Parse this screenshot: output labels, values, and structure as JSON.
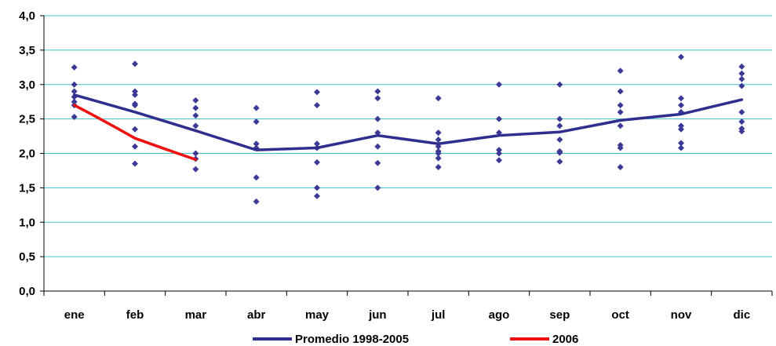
{
  "colors": {
    "gridline": "#40C0C8",
    "axis": "#000000",
    "points": "#3A3A96",
    "promedio_line": "#2E2E8E",
    "line_2006": "#EE1111"
  },
  "chart_data": {
    "type": "line",
    "title": "",
    "xlabel": "",
    "ylabel": "",
    "ylim": [
      0,
      4
    ],
    "y_ticks": [
      "0,0",
      "0,5",
      "1,0",
      "1,5",
      "2,0",
      "2,5",
      "3,0",
      "3,5",
      "4,0"
    ],
    "y_tick_values": [
      0,
      0.5,
      1,
      1.5,
      2,
      2.5,
      3,
      3.5,
      4
    ],
    "categories": [
      "ene",
      "feb",
      "mar",
      "abr",
      "may",
      "jun",
      "jul",
      "ago",
      "sep",
      "oct",
      "nov",
      "dic"
    ],
    "grid": true,
    "legend_position": "bottom",
    "series": [
      {
        "name": "Promedio 1998-2005",
        "kind": "line",
        "values": [
          2.85,
          2.6,
          2.33,
          2.05,
          2.08,
          2.26,
          2.14,
          2.26,
          2.31,
          2.48,
          2.57,
          2.78
        ]
      },
      {
        "name": "2006",
        "kind": "line",
        "values": [
          2.7,
          2.22,
          1.91,
          null,
          null,
          null,
          null,
          null,
          null,
          null,
          null,
          null
        ]
      }
    ],
    "scatter_points": [
      [
        3.25,
        3.0,
        2.9,
        2.82,
        2.75,
        2.7,
        2.53
      ],
      [
        3.3,
        2.9,
        2.85,
        2.72,
        2.7,
        2.35,
        2.1,
        1.85
      ],
      [
        2.77,
        2.66,
        2.55,
        2.4,
        2.0,
        1.92,
        1.77
      ],
      [
        2.66,
        2.46,
        2.14,
        2.08,
        1.65,
        1.3
      ],
      [
        2.89,
        2.7,
        2.14,
        2.08,
        1.87,
        1.5,
        1.38
      ],
      [
        2.9,
        2.8,
        2.5,
        2.3,
        2.1,
        1.86,
        1.5
      ],
      [
        2.8,
        2.3,
        2.2,
        2.1,
        2.03,
        2.0,
        1.93,
        1.8
      ],
      [
        3.0,
        2.5,
        2.3,
        2.05,
        2.0,
        1.9
      ],
      [
        3.0,
        2.5,
        2.4,
        2.2,
        2.03,
        2.01,
        1.88
      ],
      [
        3.2,
        2.9,
        2.7,
        2.6,
        2.4,
        2.12,
        2.08,
        1.8
      ],
      [
        3.4,
        2.8,
        2.7,
        2.6,
        2.4,
        2.35,
        2.15,
        2.08
      ],
      [
        3.26,
        3.16,
        3.08,
        2.98,
        2.6,
        2.46,
        2.36,
        2.32
      ]
    ]
  }
}
